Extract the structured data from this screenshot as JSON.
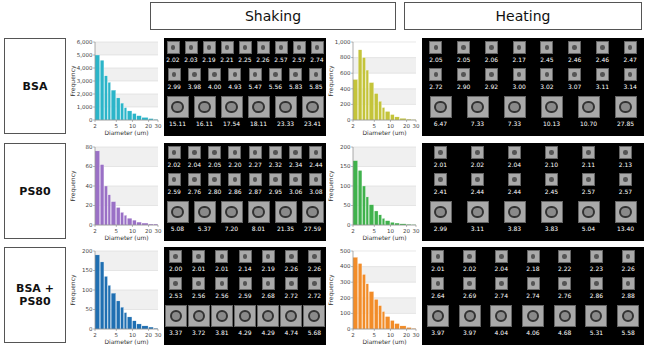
{
  "columns": [
    "Shaking",
    "Heating"
  ],
  "rows": [
    "BSA",
    "PS80",
    "BSA + PS80"
  ],
  "chart_data": [
    {
      "type": "histogram",
      "x_label": "Diameter (um)",
      "y_label": "Frequency",
      "color": "#2bb5c9",
      "bins": [
        2,
        2.5,
        3,
        3.5,
        4,
        5,
        6,
        7,
        8,
        10,
        12,
        15,
        20,
        25,
        30
      ],
      "values": [
        5000,
        4600,
        3400,
        2900,
        2300,
        1700,
        1300,
        950,
        700,
        500,
        330,
        200,
        110,
        50
      ],
      "xlim": [
        2,
        30
      ],
      "xticks": [
        2,
        5,
        10,
        20,
        30
      ],
      "log": "x",
      "grid": true,
      "ylim": [
        0,
        6000
      ],
      "yticks": [
        0,
        {
          "value": 1000,
          "label": "1,000"
        },
        {
          "value": 2000,
          "label": "2,000"
        },
        {
          "value": 3000,
          "label": "3,000"
        },
        {
          "value": 4000,
          "label": "4,000"
        },
        {
          "value": 5000,
          "label": "5,000"
        },
        {
          "value": 6000,
          "label": "6,000"
        }
      ]
    },
    {
      "type": "histogram",
      "x_label": "Diameter (um)",
      "y_label": "Frequency",
      "color": "#c4c43a",
      "bins": [
        2,
        2.5,
        3,
        3.5,
        4,
        5,
        6,
        7,
        8,
        10,
        12,
        15,
        20,
        25,
        30
      ],
      "values": [
        520,
        900,
        800,
        640,
        480,
        340,
        240,
        160,
        110,
        70,
        40,
        22,
        12,
        5
      ],
      "xlim": [
        2,
        30
      ],
      "xticks": [
        2,
        5,
        10,
        20,
        30
      ],
      "log": "x",
      "grid": true,
      "ylim": [
        0,
        1000
      ],
      "yticks": [
        0,
        200,
        400,
        600,
        800,
        {
          "value": 1000,
          "label": "1,000"
        }
      ]
    },
    {
      "type": "histogram",
      "x_label": "Diameter (um)",
      "y_label": "Frequency",
      "color": "#9a70c6",
      "bins": [
        2,
        2.5,
        3,
        3.5,
        4,
        5,
        6,
        7,
        8,
        10,
        12,
        15,
        20,
        25,
        30
      ],
      "values": [
        76,
        62,
        40,
        31,
        24,
        18,
        13,
        10,
        7,
        5,
        3,
        2,
        1,
        1
      ],
      "xlim": [
        2,
        30
      ],
      "xticks": [
        2,
        5,
        10,
        20,
        30
      ],
      "log": "x",
      "grid": true,
      "ylim": [
        0,
        80
      ],
      "yticks": [
        0,
        20,
        40,
        60,
        80
      ]
    },
    {
      "type": "histogram",
      "x_label": "Diameter (um)",
      "y_label": "Frequency",
      "color": "#3fb24c",
      "bins": [
        2,
        2.5,
        3,
        3.5,
        4,
        5,
        6,
        7,
        8,
        10,
        12,
        15,
        20,
        25,
        30
      ],
      "values": [
        165,
        140,
        100,
        72,
        52,
        36,
        26,
        17,
        11,
        7,
        5,
        3,
        2,
        1
      ],
      "xlim": [
        2,
        30
      ],
      "xticks": [
        2,
        5,
        10,
        20,
        30
      ],
      "log": "x",
      "grid": true,
      "ylim": [
        0,
        200
      ],
      "yticks": [
        0,
        50,
        100,
        150,
        200
      ]
    },
    {
      "type": "histogram",
      "x_label": "Diameter (um)",
      "y_label": "Frequency",
      "color": "#1f6fb2",
      "bins": [
        2,
        2.5,
        3,
        3.5,
        4,
        5,
        6,
        7,
        8,
        10,
        12,
        15,
        20,
        25,
        30
      ],
      "values": [
        190,
        172,
        135,
        112,
        92,
        72,
        56,
        42,
        31,
        21,
        13,
        8,
        5,
        2
      ],
      "xlim": [
        2,
        30
      ],
      "xticks": [
        2,
        5,
        10,
        20,
        30
      ],
      "log": "x",
      "grid": true,
      "ylim": [
        0,
        200
      ],
      "yticks": [
        0,
        50,
        100,
        150,
        200
      ]
    },
    {
      "type": "histogram",
      "x_label": "Diameter (um)",
      "y_label": "Frequency",
      "color": "#f28c28",
      "bins": [
        2,
        2.5,
        3,
        3.5,
        4,
        5,
        6,
        7,
        8,
        10,
        12,
        15,
        20,
        25,
        30
      ],
      "values": [
        460,
        420,
        350,
        290,
        240,
        190,
        150,
        112,
        80,
        55,
        35,
        20,
        10,
        4
      ],
      "xlim": [
        2,
        30
      ],
      "xticks": [
        2,
        5,
        10,
        20,
        30
      ],
      "log": "x",
      "grid": true,
      "ylim": [
        0,
        500
      ],
      "yticks": [
        0,
        100,
        200,
        300,
        400,
        500
      ]
    }
  ],
  "particle_panels": [
    [
      [
        "2.02",
        "2.03",
        "2.19",
        "2.21",
        "2.25",
        "2.26",
        "2.57",
        "2.57",
        "2.74"
      ],
      [
        "2.99",
        "3.98",
        "4.00",
        "4.93",
        "5.47",
        "5.56",
        "5.83",
        "5.85"
      ],
      [
        "15.11",
        "16.11",
        "17.54",
        "18.11",
        "23.33",
        "23.41"
      ]
    ],
    [
      [
        "2.05",
        "2.05",
        "2.06",
        "2.17",
        "2.45",
        "2.46",
        "2.46",
        "2.47"
      ],
      [
        "2.72",
        "2.90",
        "2.92",
        "3.00",
        "3.02",
        "3.07",
        "3.11",
        "3.14"
      ],
      [
        "6.47",
        "7.33",
        "7.33",
        "10.13",
        "10.70",
        "27.85"
      ]
    ],
    [
      [
        "2.02",
        "2.04",
        "2.05",
        "2.20",
        "2.27",
        "2.32",
        "2.34",
        "2.44"
      ],
      [
        "2.59",
        "2.76",
        "2.80",
        "2.86",
        "2.87",
        "2.95",
        "3.06",
        "3.08"
      ],
      [
        "5.08",
        "5.37",
        "7.20",
        "8.01",
        "21.35",
        "27.59"
      ]
    ],
    [
      [
        "2.01",
        "2.02",
        "2.04",
        "2.10",
        "2.11",
        "2.13"
      ],
      [
        "2.41",
        "2.44",
        "2.44",
        "2.45",
        "2.57",
        "2.57"
      ],
      [
        "2.99",
        "3.11",
        "3.83",
        "3.83",
        "5.04",
        "13.40"
      ]
    ],
    [
      [
        "2.00",
        "2.01",
        "2.01",
        "2.14",
        "2.19",
        "2.26",
        "2.26"
      ],
      [
        "2.53",
        "2.56",
        "2.56",
        "2.59",
        "2.68",
        "2.72",
        "2.72"
      ],
      [
        "3.37",
        "3.72",
        "3.81",
        "4.29",
        "4.29",
        "4.74",
        "5.68"
      ]
    ],
    [
      [
        "2.01",
        "2.02",
        "2.04",
        "2.18",
        "2.22",
        "2.23",
        "2.26"
      ],
      [
        "2.64",
        "2.69",
        "2.74",
        "2.74",
        "2.76",
        "2.86",
        "2.88"
      ],
      [
        "3.97",
        "3.97",
        "4.04",
        "4.06",
        "4.68",
        "5.31",
        "5.58"
      ]
    ]
  ]
}
